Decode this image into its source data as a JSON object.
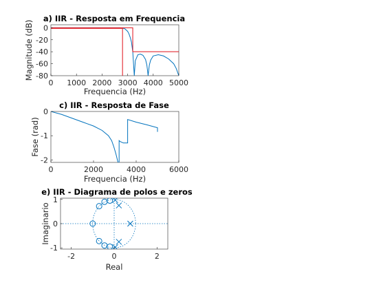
{
  "colors": {
    "response": "#0072BD",
    "spec": "#E0101A",
    "axis": "#262626"
  },
  "chart_data": [
    {
      "type": "line",
      "title": "a) IIR - Resposta em Frequencia",
      "xlabel": "Frequencia (Hz)",
      "ylabel": "Magnitude (dB)",
      "xlim": [
        0,
        5000
      ],
      "ylim": [
        -80,
        5
      ],
      "xticks": [
        0,
        1000,
        2000,
        3000,
        4000,
        5000
      ],
      "yticks": [
        0,
        -20,
        -40,
        -60,
        -80
      ],
      "grid": false,
      "series": [
        {
          "color": "#0072BD",
          "x": [
            0,
            500,
            1000,
            1500,
            2000,
            2500,
            2700,
            2800,
            2900,
            3000,
            3050,
            3100,
            3150,
            3200,
            3230,
            3260,
            3300,
            3400,
            3500,
            3600,
            3700,
            3750,
            3780,
            3800,
            3820,
            3850,
            3900,
            4000,
            4200,
            4400,
            4600,
            4800,
            4900,
            5000
          ],
          "y": [
            0,
            0,
            0,
            0,
            0,
            0,
            0,
            -0.5,
            -2,
            -6,
            -10,
            -16,
            -24,
            -40,
            -60,
            -80,
            -55,
            -45,
            -44,
            -46,
            -53,
            -62,
            -72,
            -80,
            -72,
            -62,
            -54,
            -47,
            -45,
            -47,
            -52,
            -60,
            -68,
            -80
          ]
        },
        {
          "color": "#E0101A",
          "x": [
            0,
            2800,
            2800
          ],
          "y": [
            -1,
            -1,
            -80
          ]
        },
        {
          "color": "#E0101A",
          "x": [
            0,
            3200,
            3200,
            5000
          ],
          "y": [
            0,
            0,
            -40,
            -40
          ]
        }
      ]
    },
    {
      "type": "line",
      "title": "c) IIR - Resposta de Fase",
      "xlabel": "Frequencia (Hz)",
      "ylabel": "Fase (rad)",
      "xlim": [
        0,
        6000
      ],
      "ylim": [
        -2.1,
        0
      ],
      "xticks": [
        0,
        2000,
        4000,
        6000
      ],
      "yticks": [
        0,
        -1,
        -2
      ],
      "grid": false,
      "series": [
        {
          "color": "#0072BD",
          "x": [
            0,
            500,
            1000,
            1500,
            2000,
            2400,
            2700,
            2850,
            2950,
            3050,
            3120,
            3150,
            3200,
            3200,
            3250,
            3400,
            3500,
            3600,
            3600,
            4000,
            4500,
            5000,
            5000
          ],
          "y": [
            0,
            -0.12,
            -0.28,
            -0.44,
            -0.6,
            -0.78,
            -1.0,
            -1.2,
            -1.45,
            -1.75,
            -2.0,
            -2.1,
            -2.15,
            -1.2,
            -1.24,
            -1.3,
            -1.3,
            -1.3,
            -0.33,
            -0.44,
            -0.55,
            -0.67,
            -0.84
          ]
        }
      ]
    },
    {
      "type": "scatter",
      "title": "e) IIR - Diagrama de polos e zeros",
      "xlabel": "Real",
      "ylabel": "Imaginario",
      "xlim": [
        -2.5,
        2.5
      ],
      "ylim": [
        -1.05,
        1.05
      ],
      "xticks": [
        -2,
        0,
        2
      ],
      "yticks": [
        1,
        0,
        -1
      ],
      "grid": false,
      "unit_circle": true,
      "zeros": [
        [
          -1,
          0
        ],
        [
          -0.7,
          0.72
        ],
        [
          -0.7,
          -0.72
        ],
        [
          -0.45,
          0.9
        ],
        [
          -0.45,
          -0.9
        ],
        [
          -0.2,
          0.95
        ],
        [
          -0.2,
          -0.95
        ]
      ],
      "poles": [
        [
          0.75,
          0
        ],
        [
          0.05,
          0.97
        ],
        [
          0.05,
          -0.97
        ],
        [
          0.22,
          0.75
        ],
        [
          0.22,
          -0.75
        ]
      ]
    }
  ]
}
